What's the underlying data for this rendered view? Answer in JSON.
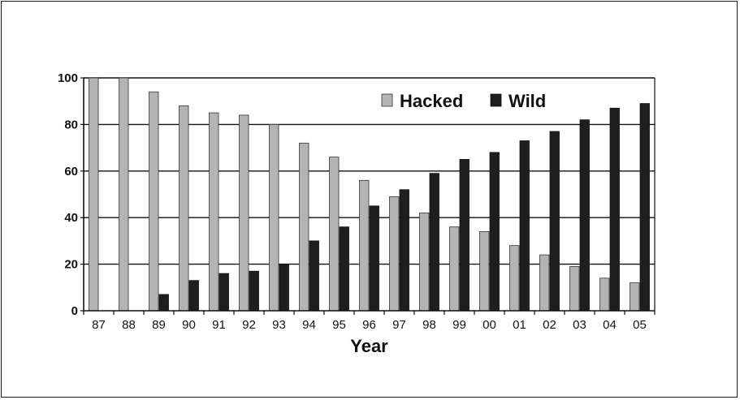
{
  "chart_data": {
    "type": "bar",
    "title": "",
    "xlabel": "Year",
    "ylabel": "",
    "ylim": [
      0,
      100
    ],
    "yticks": [
      0,
      20,
      40,
      60,
      80,
      100
    ],
    "grid": "horizontal",
    "legend_position": "top-right",
    "categories": [
      "87",
      "88",
      "89",
      "90",
      "91",
      "92",
      "93",
      "94",
      "95",
      "96",
      "97",
      "98",
      "99",
      "00",
      "01",
      "02",
      "03",
      "04",
      "05"
    ],
    "series": [
      {
        "name": "Hacked",
        "color": "#b4b4b4",
        "values": [
          100,
          100,
          94,
          88,
          85,
          84,
          80,
          72,
          66,
          56,
          49,
          42,
          36,
          34,
          28,
          24,
          19,
          14,
          12
        ]
      },
      {
        "name": "Wild",
        "color": "#1e1e1e",
        "values": [
          0,
          0,
          7,
          13,
          16,
          17,
          20,
          30,
          36,
          45,
          52,
          59,
          65,
          68,
          73,
          77,
          82,
          87,
          89
        ]
      }
    ]
  }
}
